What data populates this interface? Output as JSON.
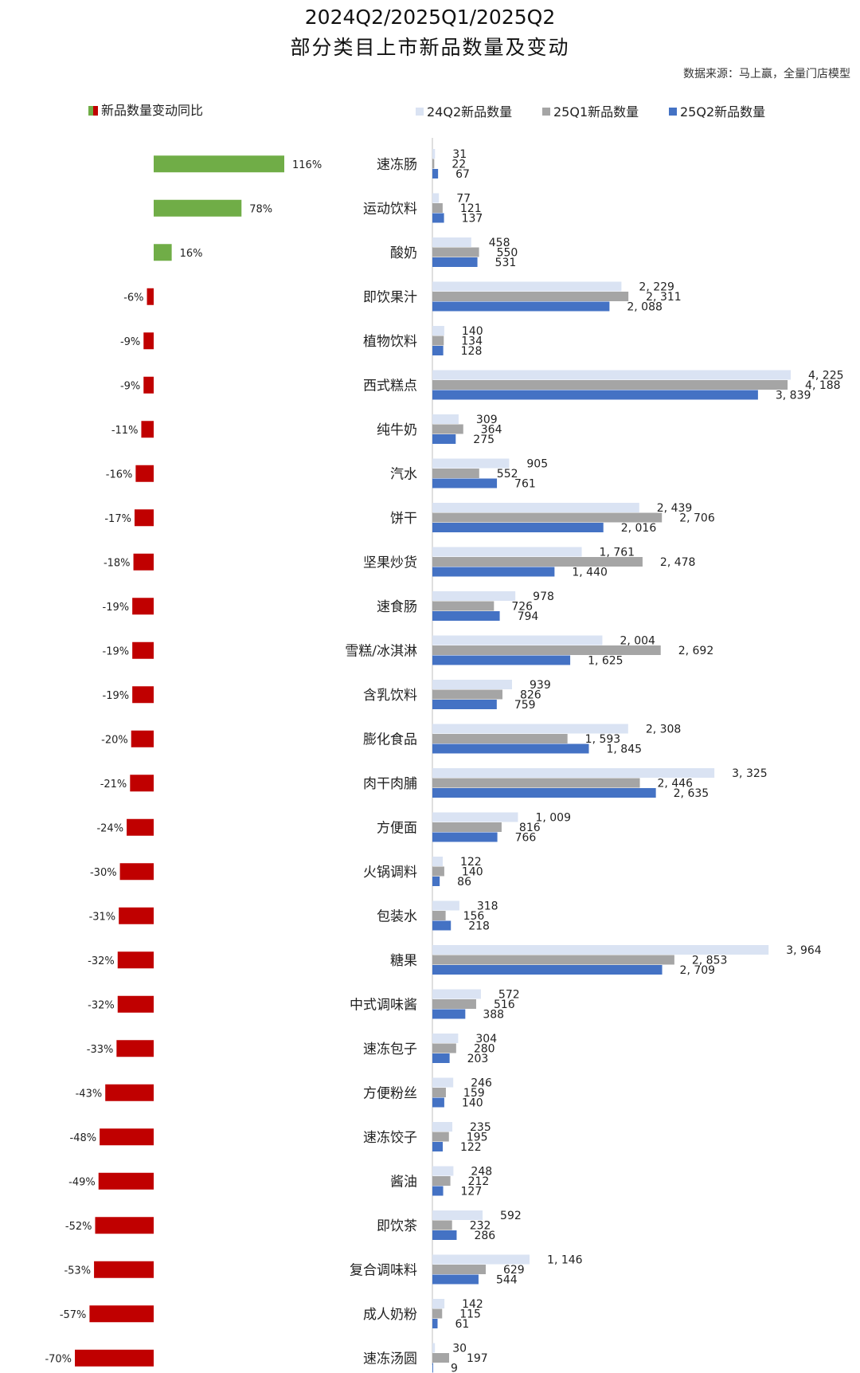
{
  "title_line1": "2024Q2/2025Q1/2025Q2",
  "title_line2": "部分类目上市新品数量及变动",
  "source": "数据来源：马上赢，全量门店模型",
  "colors": {
    "q24q2": "#dae3f3",
    "q25q1": "#a5a5a5",
    "q25q2": "#4472c4",
    "pos": "#70ad47",
    "neg": "#c00000"
  },
  "chart_data": {
    "type": "bar",
    "orientation": "horizontal",
    "categories": [
      "速冻肠",
      "运动饮料",
      "酸奶",
      "即饮果汁",
      "植物饮料",
      "西式糕点",
      "纯牛奶",
      "汽水",
      "饼干",
      "坚果炒货",
      "速食肠",
      "雪糕/冰淇淋",
      "含乳饮料",
      "膨化食品",
      "肉干肉脯",
      "方便面",
      "火锅调料",
      "包装水",
      "糖果",
      "中式调味酱",
      "速冻包子",
      "方便粉丝",
      "速冻饺子",
      "酱油",
      "即饮茶",
      "复合调味料",
      "成人奶粉",
      "速冻汤圆"
    ],
    "series": [
      {
        "name": "24Q2新品数量",
        "values": [
          31,
          77,
          458,
          2229,
          140,
          4225,
          309,
          905,
          2439,
          1761,
          978,
          2004,
          939,
          2308,
          3325,
          1009,
          122,
          318,
          3964,
          572,
          304,
          246,
          235,
          248,
          592,
          1146,
          142,
          30
        ]
      },
      {
        "name": "25Q1新品数量",
        "values": [
          22,
          121,
          550,
          2311,
          134,
          4188,
          364,
          552,
          2706,
          2478,
          726,
          2692,
          826,
          1593,
          2446,
          816,
          140,
          156,
          2853,
          516,
          280,
          159,
          195,
          212,
          232,
          629,
          115,
          197
        ]
      },
      {
        "name": "25Q2新品数量",
        "values": [
          67,
          137,
          531,
          2088,
          128,
          3839,
          275,
          761,
          2016,
          1440,
          794,
          1625,
          759,
          1845,
          2635,
          766,
          86,
          218,
          2709,
          388,
          203,
          140,
          122,
          127,
          286,
          544,
          61,
          9
        ]
      }
    ],
    "value_labels": {
      "24Q2新品数量": [
        "31",
        "77",
        "458",
        "2, 229",
        "140",
        "4, 225",
        "309",
        "905",
        "2, 439",
        "1, 761",
        "978",
        "2, 004",
        "939",
        "2, 308",
        "3, 325",
        "1, 009",
        "122",
        "318",
        "3, 964",
        "572",
        "304",
        "246",
        "235",
        "248",
        "592",
        "1, 146",
        "142",
        "30"
      ],
      "25Q1新品数量": [
        "22",
        "121",
        "550",
        "2, 311",
        "134",
        "4, 188",
        "364",
        "552",
        "2, 706",
        "2, 478",
        "726",
        "2, 692",
        "826",
        "1, 593",
        "2, 446",
        "816",
        "140",
        "156",
        "2, 853",
        "516",
        "280",
        "159",
        "195",
        "212",
        "232",
        "629",
        "115",
        "197"
      ],
      "25Q2新品数量": [
        "67",
        "137",
        "531",
        "2, 088",
        "128",
        "3, 839",
        "275",
        "761",
        "2, 016",
        "1, 440",
        "794",
        "1, 625",
        "759",
        "1, 845",
        "2, 635",
        "766",
        "86",
        "218",
        "2, 709",
        "388",
        "203",
        "140",
        "122",
        "127",
        "286",
        "544",
        "61",
        "9"
      ]
    },
    "yoy": {
      "name": "新品数量变动同比",
      "values": [
        116,
        78,
        16,
        -6,
        -9,
        -9,
        -11,
        -16,
        -17,
        -18,
        -19,
        -19,
        -19,
        -20,
        -21,
        -24,
        -30,
        -31,
        -32,
        -32,
        -33,
        -43,
        -48,
        -49,
        -52,
        -53,
        -57,
        -70
      ],
      "labels": [
        "116%",
        "78%",
        "16%",
        "-6%",
        "-9%",
        "-9%",
        "-11%",
        "-16%",
        "-17%",
        "-18%",
        "-19%",
        "-19%",
        "-19%",
        "-20%",
        "-21%",
        "-24%",
        "-30%",
        "-31%",
        "-32%",
        "-32%",
        "-33%",
        "-43%",
        "-48%",
        "-49%",
        "-52%",
        "-53%",
        "-57%",
        "-70%"
      ]
    },
    "legend_position": "top",
    "grid": false
  }
}
